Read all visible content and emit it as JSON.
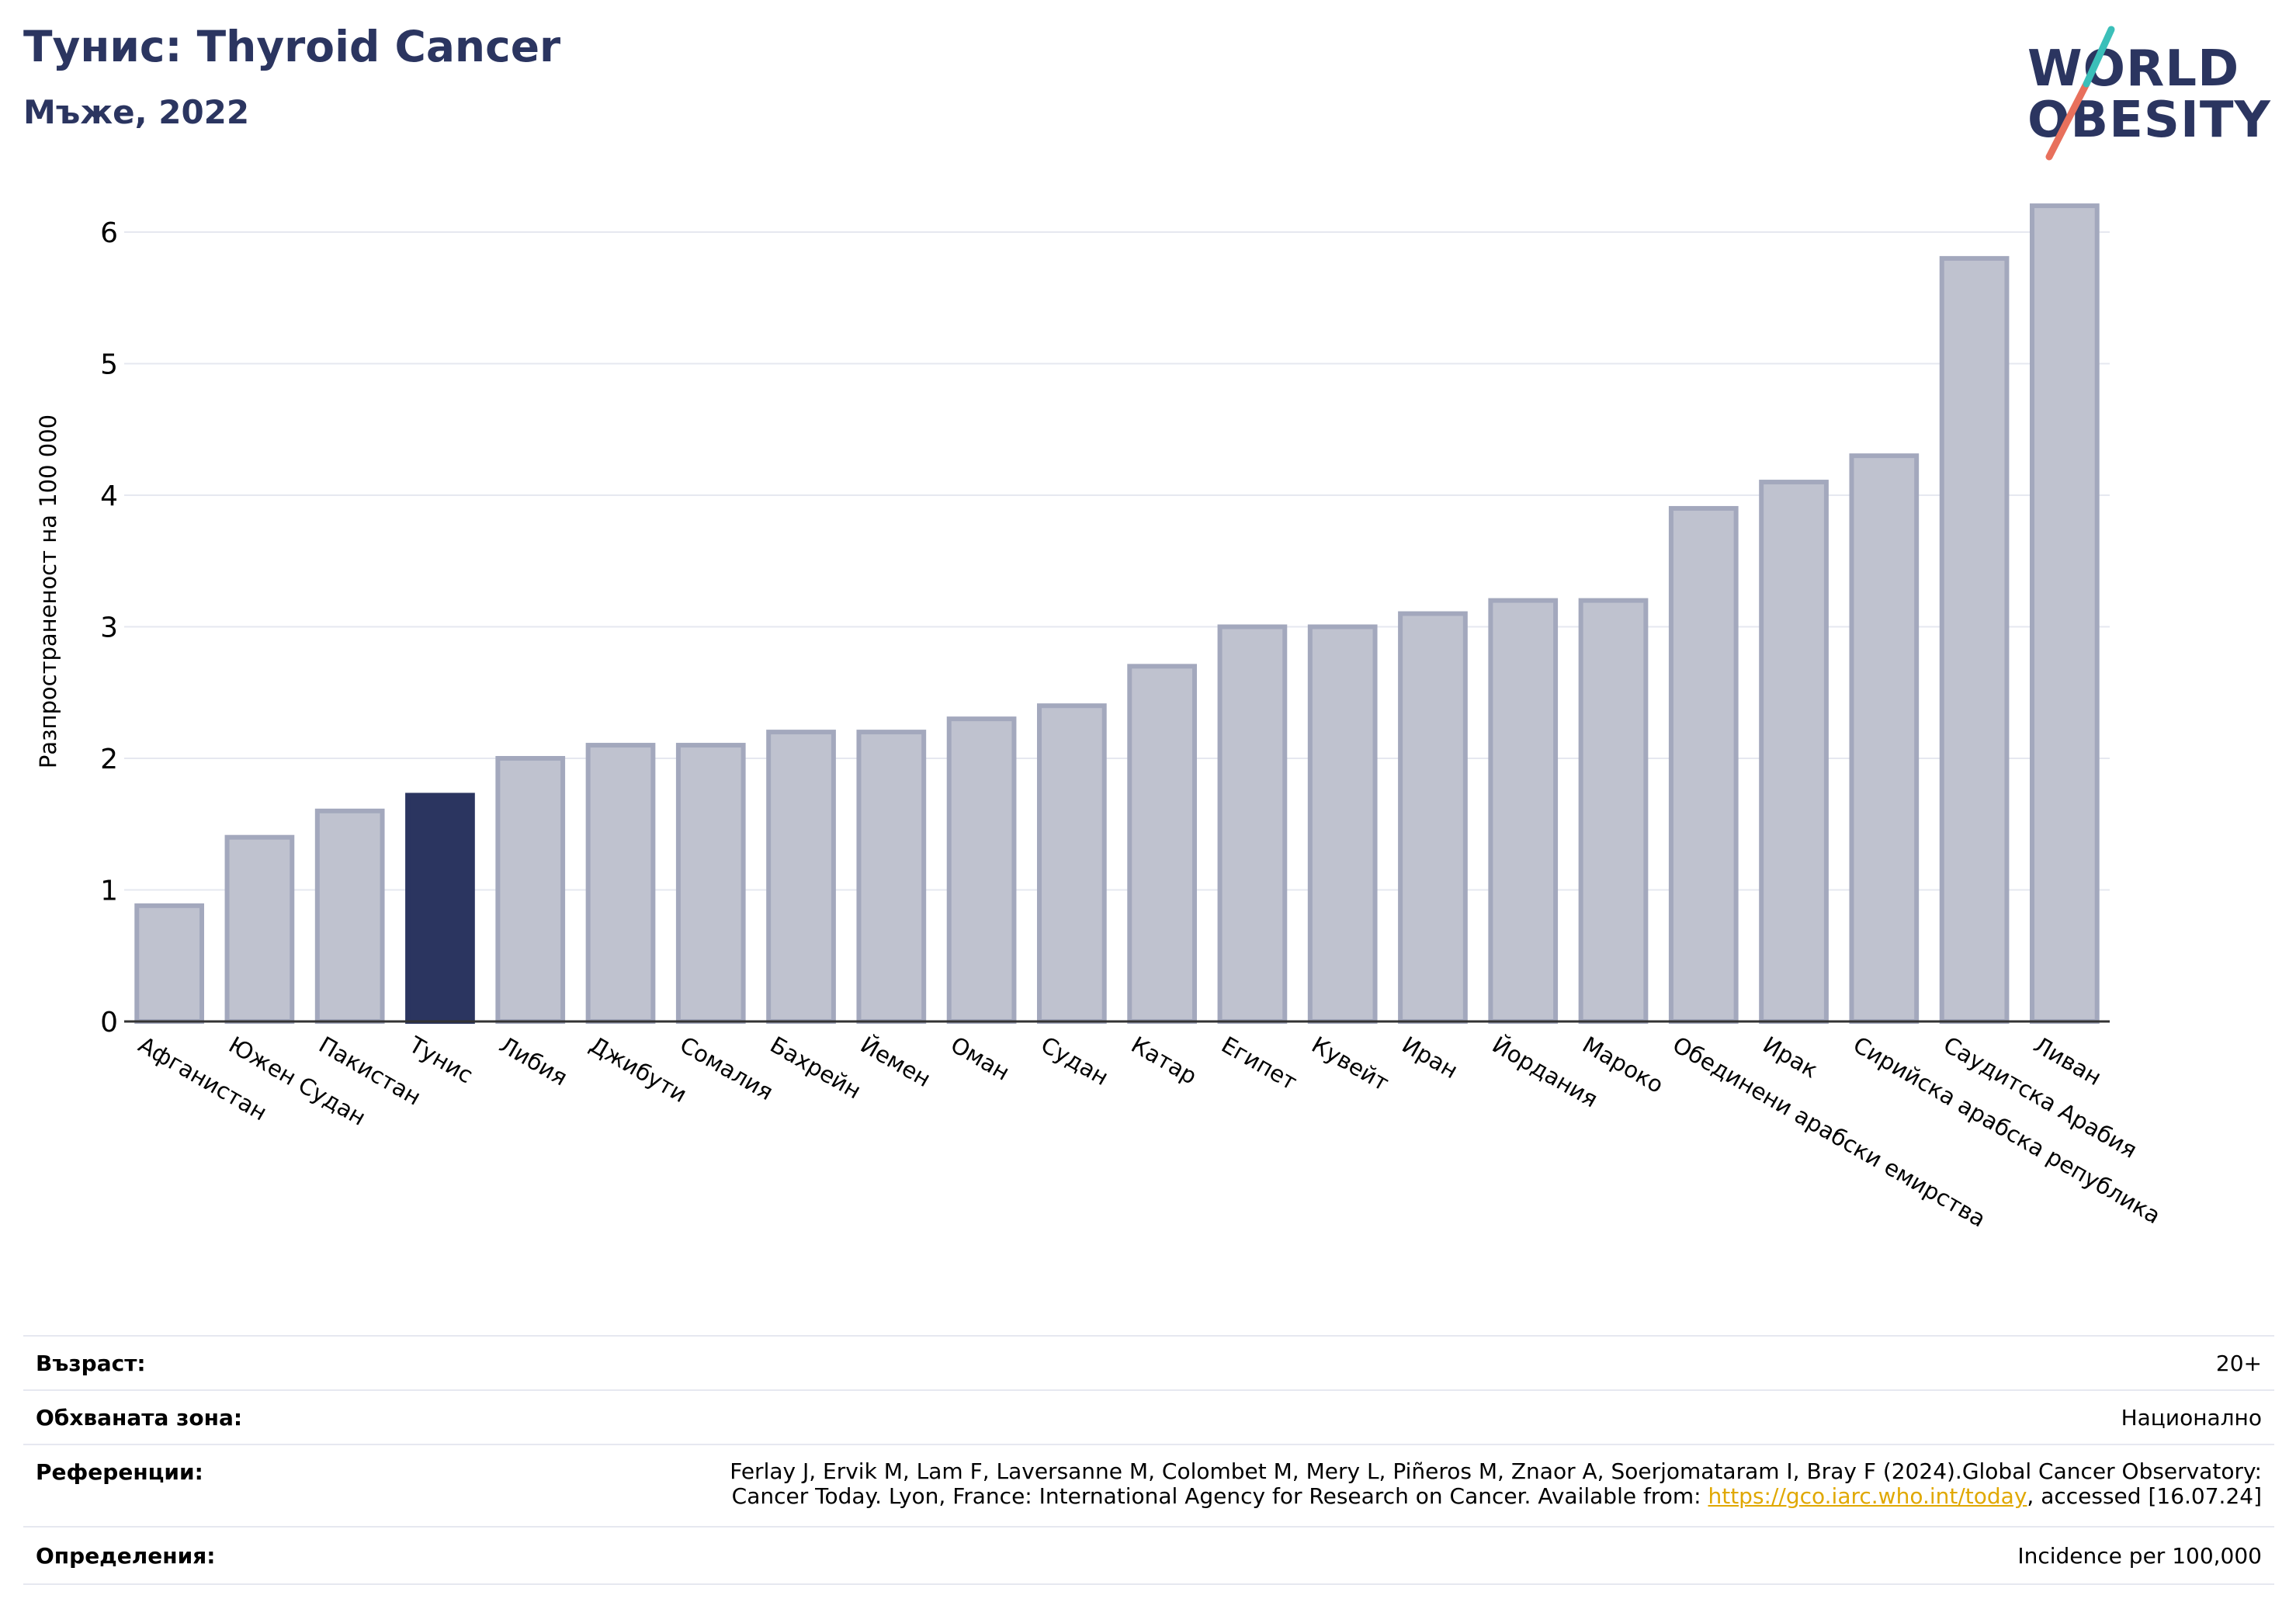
{
  "header": {
    "title": "Тунис: Thyroid Cancer",
    "subtitle": "Мъже, 2022"
  },
  "logo": {
    "line1": "WORLD",
    "line2": "OBESITY"
  },
  "colors": {
    "highlight": "#2b3560",
    "bar_fill": "#bfc2cf",
    "bar_stroke": "#a3a8bd",
    "text_dark": "#2b3560",
    "logo_teal": "#3bbfb9",
    "logo_coral": "#e8705c"
  },
  "chart_data": {
    "type": "bar",
    "ylabel": "Разпространеност  на 100 000",
    "ylim": [
      0,
      6.4
    ],
    "yticks": [
      0,
      1,
      2,
      3,
      4,
      5,
      6
    ],
    "grid": true,
    "highlight": "Тунис",
    "categories": [
      "Афганистан",
      "Южен Судан",
      "Пакистан",
      "Тунис",
      "Либия",
      "Джибути",
      "Сомалия",
      "Бахрейн",
      "Йемен",
      "Оман",
      "Судан",
      "Катар",
      "Египет",
      "Кувейт",
      "Иран",
      "Йордания",
      "Мароко",
      "Обединени арабски емирства",
      "Ирак",
      "Сирийска арабска република",
      "Саудитска Арабия",
      "Ливан"
    ],
    "values": [
      0.88,
      1.4,
      1.6,
      1.72,
      2.0,
      2.1,
      2.1,
      2.2,
      2.2,
      2.3,
      2.4,
      2.7,
      3.0,
      3.0,
      3.1,
      3.2,
      3.2,
      3.9,
      4.1,
      4.3,
      5.8,
      6.2
    ]
  },
  "info": {
    "age_label": "Възраст:",
    "age_value": "20+",
    "area_label": "Обхваната зона:",
    "area_value": "Национално",
    "ref_label": "Референции:",
    "ref_line1": "Ferlay J, Ervik M, Lam F, Laversanne M, Colombet M, Mery L, Piñeros M, Znaor A, Soerjomataram I, Bray F (2024).Global Cancer Observatory:",
    "ref_line2_pre": "Cancer Today. Lyon, France: International Agency for Research on Cancer. Available from: ",
    "ref_link": "https://gco.iarc.who.int/today",
    "ref_line2_post": ", accessed [16.07.24]",
    "def_label": "Определения:",
    "def_value": "Incidence per 100,000"
  }
}
